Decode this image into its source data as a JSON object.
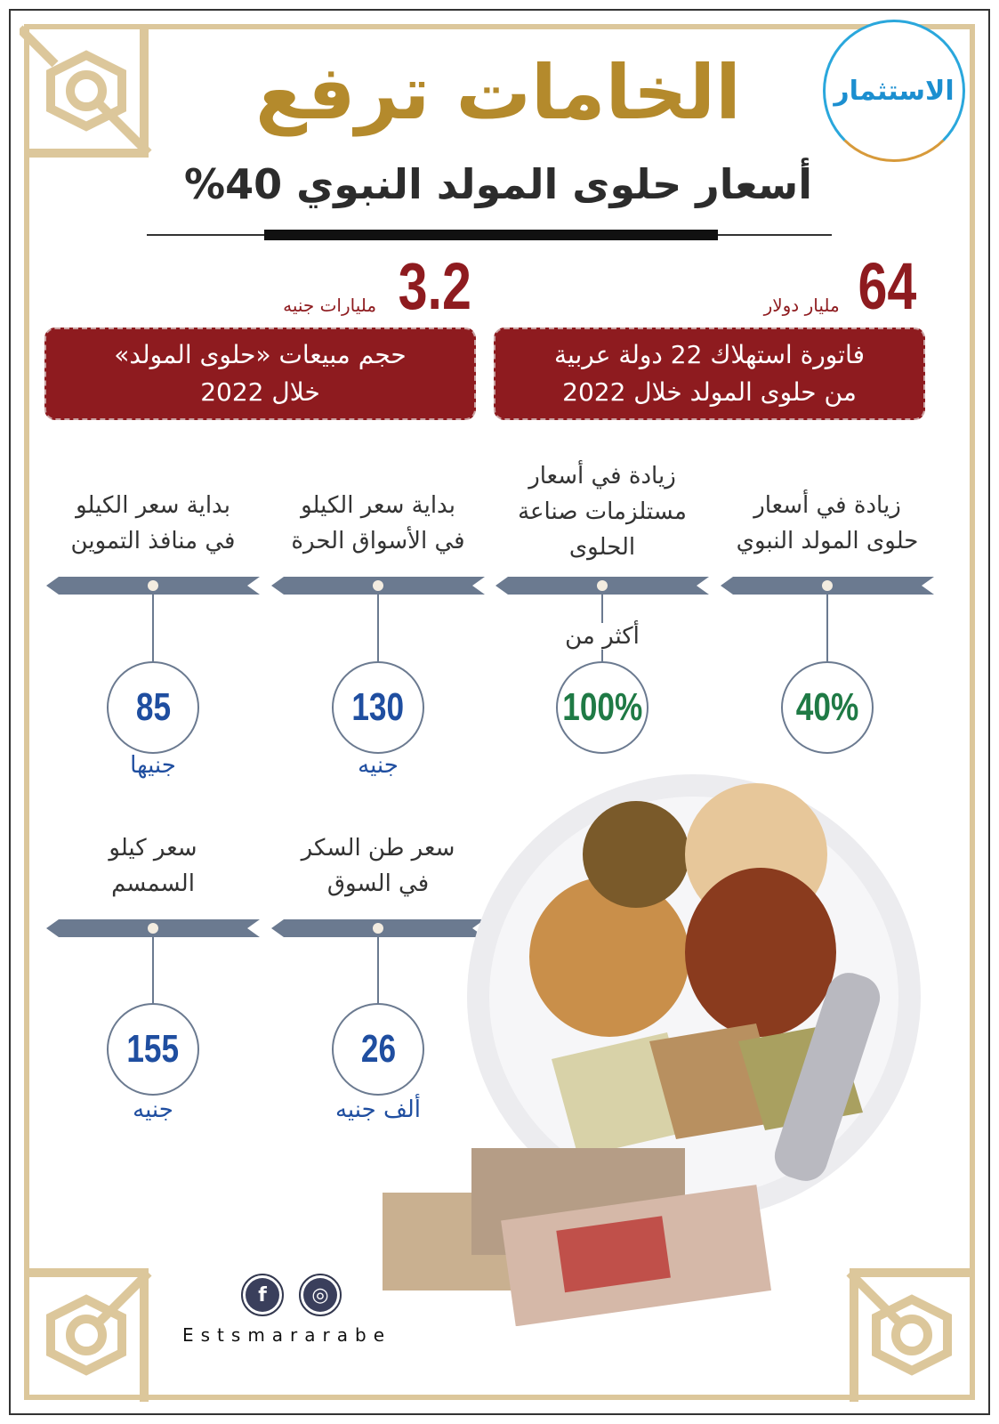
{
  "logo": {
    "text": "الاستثمار"
  },
  "header": {
    "title": "الخامات ترفع",
    "subtitle": "أسعار حلوى المولد النبوي 40%"
  },
  "colors": {
    "gold": "#b48a2c",
    "border_gold": "#dcc79b",
    "dark_red": "#8e1b1f",
    "slate": "#6b7a90",
    "blue": "#1f4ea0",
    "green": "#1f7a45"
  },
  "highlights": [
    {
      "number": "64",
      "unit": "مليار دولار",
      "line1": "فاتورة استهلاك 22 دولة عربية",
      "line2": "من حلوى المولد خلال 2022"
    },
    {
      "number": "3.2",
      "unit": "مليارات جنيه",
      "line1": "حجم مبيعات «حلوى المولد»",
      "line2": "خلال 2022"
    }
  ],
  "stats_row1": [
    {
      "line1": "زيادة في أسعار",
      "line2": "حلوى المولد النبوي",
      "value": "40%",
      "prefix": "",
      "unit": ""
    },
    {
      "line1": "زيادة في أسعار",
      "line2": "مستلزمات صناعة",
      "line3": "الحلوى",
      "value": "100%",
      "prefix": "أكثر من",
      "unit": ""
    },
    {
      "line1": "بداية سعر الكيلو",
      "line2": "في الأسواق الحرة",
      "value": "130",
      "unit": "جنيه"
    },
    {
      "line1": "بداية سعر الكيلو",
      "line2": "في منافذ التموين",
      "value": "85",
      "unit": "جنيها"
    }
  ],
  "stats_row2": [
    {
      "line1": "سعر طن السكر",
      "line2": "في السوق",
      "value": "26",
      "unit": "ألف جنيه"
    },
    {
      "line1": "سعر كيلو",
      "line2": "السمسم",
      "value": "155",
      "unit": "جنيه"
    }
  ],
  "footer": {
    "brand": "Estsmararabe",
    "icons": [
      "facebook-icon",
      "dribbble-icon"
    ]
  }
}
